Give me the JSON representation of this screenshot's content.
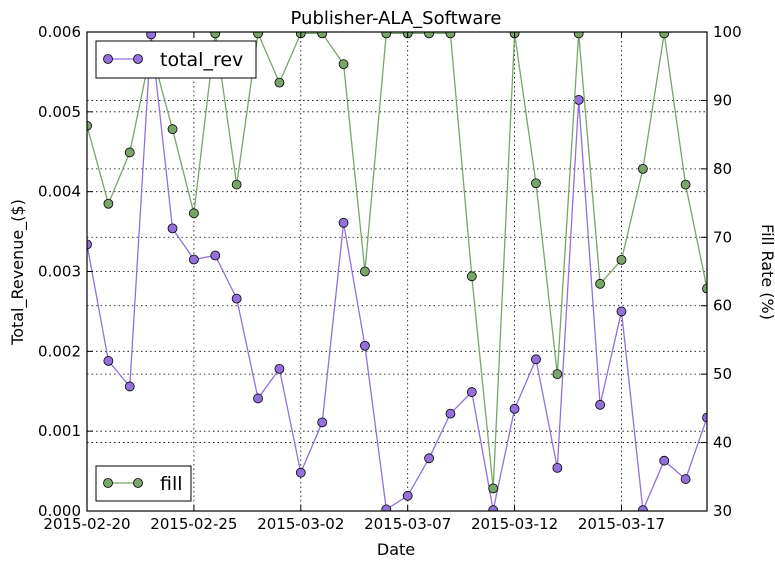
{
  "chart_data": {
    "type": "line",
    "title": "Publisher-ALA_Software",
    "xlabel": "Date",
    "ylabel": "Total_Revenue_($)",
    "y2label": "Fill Rate (%)",
    "x": [
      "2015-02-20",
      "2015-02-21",
      "2015-02-22",
      "2015-02-23",
      "2015-02-24",
      "2015-02-25",
      "2015-02-26",
      "2015-02-27",
      "2015-02-28",
      "2015-03-01",
      "2015-03-02",
      "2015-03-03",
      "2015-03-04",
      "2015-03-05",
      "2015-03-06",
      "2015-03-07",
      "2015-03-08",
      "2015-03-09",
      "2015-03-10",
      "2015-03-11",
      "2015-03-12",
      "2015-03-13",
      "2015-03-14",
      "2015-03-15",
      "2015-03-16",
      "2015-03-17",
      "2015-03-18",
      "2015-03-19",
      "2015-03-20",
      "2015-03-21"
    ],
    "xlim": [
      "2015-02-20",
      "2015-03-21"
    ],
    "xticks": [
      "2015-02-20",
      "2015-02-25",
      "2015-03-02",
      "2015-03-07",
      "2015-03-12",
      "2015-03-17"
    ],
    "ylim": [
      0,
      0.006
    ],
    "yticks": [
      "0.000",
      "0.001",
      "0.002",
      "0.003",
      "0.004",
      "0.005",
      "0.006"
    ],
    "y2lim": [
      30,
      100
    ],
    "y2ticks": [
      "30",
      "40",
      "50",
      "60",
      "70",
      "80",
      "90",
      "100"
    ],
    "grid": true,
    "series": [
      {
        "name": "total_rev",
        "axis": "left",
        "color": "#9370db",
        "legend_position": "upper-left",
        "values": [
          0.00334,
          0.00188,
          0.00156,
          0.00597,
          0.00354,
          0.00315,
          0.0032,
          0.00266,
          0.00141,
          0.00178,
          0.00048,
          0.00111,
          0.00361,
          0.00207,
          2e-05,
          0.00019,
          0.00066,
          0.00122,
          0.00149,
          1e-05,
          0.00128,
          0.0019,
          0.00054,
          0.00515,
          0.00133,
          0.0025,
          1e-05,
          0.00063,
          0.0004,
          0.00117
        ]
      },
      {
        "name": "fill",
        "axis": "right",
        "color": "#7aa56a",
        "legend_position": "lower-left",
        "values": [
          86.3,
          74.9,
          82.4,
          97.4,
          85.8,
          73.5,
          99.8,
          77.7,
          99.8,
          92.6,
          99.8,
          99.8,
          95.3,
          65.0,
          99.8,
          99.8,
          99.8,
          99.8,
          64.3,
          33.3,
          99.8,
          77.9,
          50.0,
          99.8,
          63.2,
          66.7,
          80.0,
          99.8,
          77.7,
          62.5
        ]
      }
    ]
  }
}
